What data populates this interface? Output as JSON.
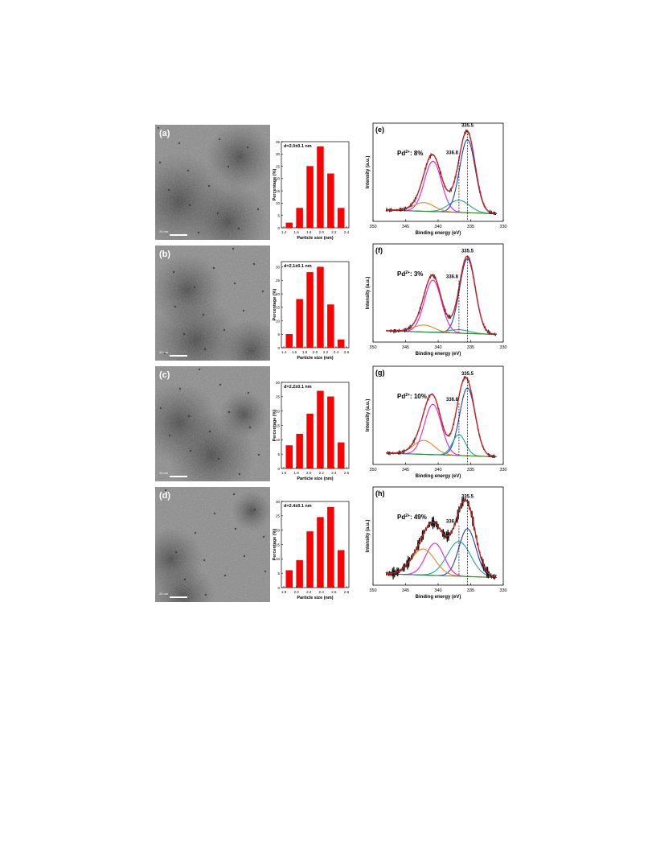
{
  "panels": [
    {
      "tem_label": "(a)",
      "scale_label": "20 nm",
      "histogram": {
        "title": "d=2.0±0.1 nm",
        "xlabel": "Particle size (nm)",
        "ylabel": "Percentage (%)",
        "categories": [
          "1.4",
          "1.6",
          "1.8",
          "2.0",
          "2.2",
          "2.4"
        ],
        "values": [
          2,
          8,
          25,
          33,
          22,
          8
        ],
        "xticks": [
          "1.4",
          "1.6",
          "1.8",
          "2.0",
          "2.2",
          "2.4"
        ],
        "ylim": [
          0,
          35
        ],
        "yticks": [
          0,
          5,
          10,
          15,
          20,
          25,
          30,
          35
        ]
      },
      "xps": {
        "label": "(e)",
        "species": "Pd",
        "species_sup": "2+",
        "species_value": ": 8%",
        "peak_main": "335.5",
        "peak_second": "336.8",
        "xlabel": "Binding energy (eV)",
        "ylabel": "Intensity (a.u.)",
        "xticks": [
          "350",
          "345",
          "340",
          "335",
          "330"
        ]
      }
    },
    {
      "tem_label": "(b)",
      "scale_label": "20 nm",
      "histogram": {
        "title": "d=2.1±0.1 nm",
        "xlabel": "Particle size (nm)",
        "ylabel": "Percentage (%)",
        "categories": [
          "1.5",
          "1.7",
          "1.9",
          "2.1",
          "2.3",
          "2.5"
        ],
        "values": [
          5,
          18,
          28,
          30,
          16,
          3
        ],
        "xticks": [
          "1.4",
          "1.6",
          "1.8",
          "2.0",
          "2.2",
          "2.4",
          "2.6"
        ],
        "ylim": [
          0,
          32
        ],
        "yticks": [
          0,
          5,
          10,
          15,
          20,
          25,
          30
        ]
      },
      "xps": {
        "label": "(f)",
        "species": "Pd",
        "species_sup": "2+",
        "species_value": ": 3%",
        "peak_main": "335.5",
        "peak_second": "336.8",
        "xlabel": "Binding energy (eV)",
        "ylabel": "Intensity (a.u.)",
        "xticks": [
          "350",
          "345",
          "340",
          "335",
          "330"
        ]
      }
    },
    {
      "tem_label": "(c)",
      "scale_label": "20 nm",
      "histogram": {
        "title": "d=2.2±0.1 nm",
        "xlabel": "Particle size (nm)",
        "ylabel": "Percentage (%)",
        "categories": [
          "1.6",
          "1.8",
          "2.0",
          "2.2",
          "2.4",
          "2.6"
        ],
        "values": [
          8,
          12,
          19,
          27,
          25,
          9
        ],
        "xticks": [
          "1.6",
          "1.8",
          "2.0",
          "2.2",
          "2.4",
          "2.6"
        ],
        "ylim": [
          0,
          30
        ],
        "yticks": [
          0,
          5,
          10,
          15,
          20,
          25,
          30
        ]
      },
      "xps": {
        "label": "(g)",
        "species": "Pd",
        "species_sup": "2+",
        "species_value": ": 10%",
        "peak_main": "335.5",
        "peak_second": "336.8",
        "xlabel": "Binding energy (eV)",
        "ylabel": "Intensity (a.u.)",
        "xticks": [
          "350",
          "345",
          "340",
          "335",
          "330"
        ]
      }
    },
    {
      "tem_label": "(d)",
      "scale_label": "20 nm",
      "histogram": {
        "title": "d=2.4±0.1 nm",
        "xlabel": "Particle size (nm)",
        "ylabel": "Percentage (%)",
        "categories": [
          "1.8",
          "2.0",
          "2.2",
          "2.4",
          "2.6",
          "2.8"
        ],
        "values": [
          6,
          9.5,
          19.5,
          24.5,
          28,
          13
        ],
        "xticks": [
          "1.8",
          "2.0",
          "2.2",
          "2.4",
          "2.6",
          "2.8"
        ],
        "ylim": [
          0,
          30
        ],
        "yticks": [
          0,
          5,
          10,
          15,
          20,
          25,
          30
        ]
      },
      "xps": {
        "label": "(h)",
        "species": "Pd",
        "species_sup": "2+",
        "species_value": ": 49%",
        "peak_main": "335.5",
        "peak_second": "336.8",
        "xlabel": "Binding energy (eV)",
        "ylabel": "Intensity (a.u.)",
        "xticks": [
          "350",
          "345",
          "340",
          "335",
          "330"
        ]
      }
    }
  ],
  "chart_data": [
    {
      "type": "bar",
      "title": "d=2.0±0.1 nm",
      "categories": [
        "1.4",
        "1.6",
        "1.8",
        "2.0",
        "2.2",
        "2.4"
      ],
      "values": [
        2,
        8,
        25,
        33,
        22,
        8
      ],
      "xlabel": "Particle size (nm)",
      "ylabel": "Percentage (%)",
      "ylim": [
        0,
        35
      ],
      "color": "#ff0000"
    },
    {
      "type": "bar",
      "title": "d=2.1±0.1 nm",
      "categories": [
        "1.5",
        "1.7",
        "1.9",
        "2.1",
        "2.3",
        "2.5"
      ],
      "values": [
        5,
        18,
        28,
        30,
        16,
        3
      ],
      "xlabel": "Particle size (nm)",
      "ylabel": "Percentage (%)",
      "ylim": [
        0,
        32
      ],
      "color": "#ff0000"
    },
    {
      "type": "bar",
      "title": "d=2.2±0.1 nm",
      "categories": [
        "1.6",
        "1.8",
        "2.0",
        "2.2",
        "2.4",
        "2.6"
      ],
      "values": [
        8,
        12,
        19,
        27,
        25,
        9
      ],
      "xlabel": "Particle size (nm)",
      "ylabel": "Percentage (%)",
      "ylim": [
        0,
        30
      ],
      "color": "#ff0000"
    },
    {
      "type": "bar",
      "title": "d=2.4±0.1 nm",
      "categories": [
        "1.8",
        "2.0",
        "2.2",
        "2.4",
        "2.6",
        "2.8"
      ],
      "values": [
        6,
        9.5,
        19.5,
        24.5,
        28,
        13
      ],
      "xlabel": "Particle size (nm)",
      "ylabel": "Percentage (%)",
      "ylim": [
        0,
        30
      ],
      "color": "#ff0000"
    },
    {
      "type": "line",
      "xlabel": "Binding energy (eV)",
      "ylabel": "Intensity (a.u.)",
      "xlim": [
        350,
        330
      ],
      "series": [
        {
          "values": [
            {
              "center": 335.5,
              "height": 0.84,
              "width": 1.2,
              "color": "#1f3fbf"
            },
            {
              "center": 340.8,
              "height": 0.58,
              "width": 1.3,
              "color": "#e020e0"
            },
            {
              "center": 336.8,
              "height": 0.14,
              "width": 1.6,
              "color": "#20a0a0"
            },
            {
              "center": 342.2,
              "height": 0.1,
              "width": 1.6,
              "color": "#e08a20"
            }
          ]
        }
      ]
    },
    {
      "type": "line",
      "xlabel": "Binding energy (eV)",
      "ylabel": "Intensity (a.u.)",
      "xlim": [
        350,
        330
      ],
      "series": [
        {
          "values": [
            {
              "center": 335.5,
              "height": 0.86,
              "width": 1.2,
              "color": "#1f3fbf"
            },
            {
              "center": 340.8,
              "height": 0.6,
              "width": 1.3,
              "color": "#e020e0"
            },
            {
              "center": 336.8,
              "height": 0.04,
              "width": 1.6,
              "color": "#20a0a0"
            },
            {
              "center": 342.2,
              "height": 0.08,
              "width": 1.6,
              "color": "#e08a20"
            }
          ]
        }
      ]
    },
    {
      "type": "line",
      "xlabel": "Binding energy (eV)",
      "ylabel": "Intensity (a.u.)",
      "xlim": [
        350,
        330
      ],
      "series": [
        {
          "values": [
            {
              "center": 335.5,
              "height": 0.78,
              "width": 1.2,
              "color": "#1f3fbf"
            },
            {
              "center": 340.8,
              "height": 0.58,
              "width": 1.3,
              "color": "#e020e0"
            },
            {
              "center": 336.8,
              "height": 0.24,
              "width": 1.0,
              "color": "#20a0a0"
            },
            {
              "center": 342.2,
              "height": 0.16,
              "width": 1.6,
              "color": "#e08a20"
            }
          ]
        }
      ]
    },
    {
      "type": "line",
      "xlabel": "Binding energy (eV)",
      "ylabel": "Intensity (a.u.)",
      "xlim": [
        350,
        330
      ],
      "series": [
        {
          "values": [
            {
              "center": 335.5,
              "height": 0.55,
              "width": 1.3,
              "color": "#1f3fbf"
            },
            {
              "center": 340.5,
              "height": 0.37,
              "width": 1.4,
              "color": "#e020e0"
            },
            {
              "center": 336.8,
              "height": 0.4,
              "width": 1.8,
              "color": "#20a0a0"
            },
            {
              "center": 342.3,
              "height": 0.3,
              "width": 1.8,
              "color": "#e08a20"
            }
          ]
        }
      ]
    }
  ]
}
